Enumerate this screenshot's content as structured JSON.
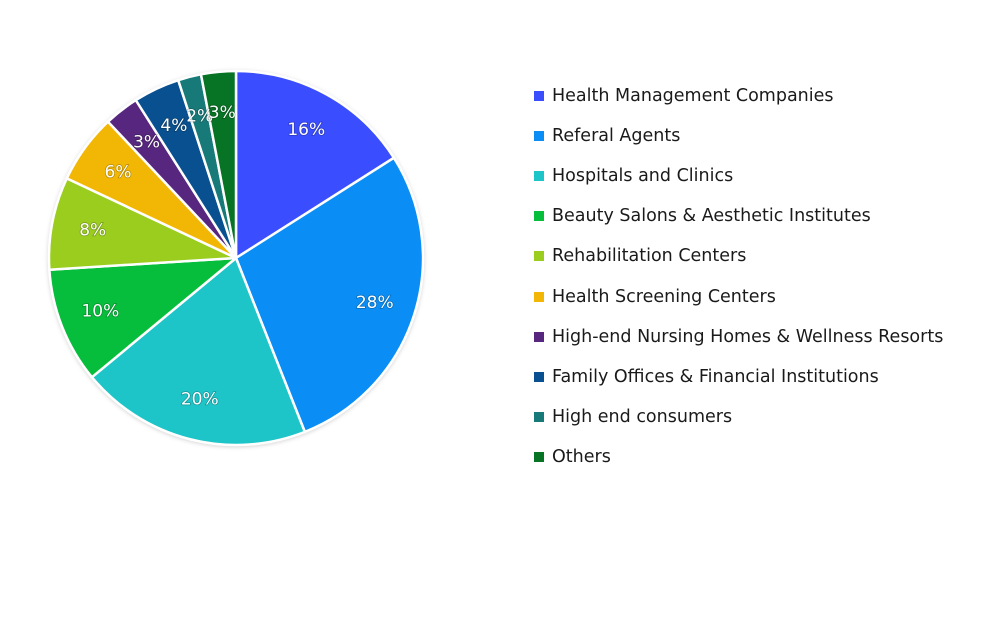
{
  "chart_data": {
    "type": "pie",
    "title": "",
    "start_angle": "12 o'clock, clockwise",
    "legend_position": "right",
    "categories": [
      "Health Management Companies",
      "Referal Agents",
      "Hospitals and Clinics",
      "Beauty Salons & Aesthetic Institutes",
      "Rehabilitation Centers",
      "Health Screening Centers",
      "High-end Nursing Homes & Wellness Resorts",
      "Family Offices & Financial Institutions",
      "High end consumers",
      "Others"
    ],
    "values": [
      16,
      28,
      20,
      10,
      8,
      6,
      3,
      4,
      2,
      3
    ],
    "labels": [
      "16%",
      "28%",
      "20%",
      "10%",
      "8%",
      "6%",
      "3%",
      "4%",
      "2%",
      "3%"
    ],
    "colors": [
      "#3a4dff",
      "#0a8ef5",
      "#1ec5c8",
      "#07bd3c",
      "#9acd1e",
      "#f2b705",
      "#57267f",
      "#08508f",
      "#177a78",
      "#077325"
    ],
    "unit": "%"
  },
  "legend": {
    "items": [
      {
        "label": "Health Management Companies",
        "color": "#3a4dff"
      },
      {
        "label": "Referal Agents",
        "color": "#0a8ef5"
      },
      {
        "label": "Hospitals and Clinics",
        "color": "#1ec5c8"
      },
      {
        "label": "Beauty Salons & Aesthetic Institutes",
        "color": "#07bd3c"
      },
      {
        "label": "Rehabilitation Centers",
        "color": "#9acd1e"
      },
      {
        "label": "Health Screening Centers",
        "color": "#f2b705"
      },
      {
        "label": "High-end Nursing Homes & Wellness Resorts",
        "color": "#57267f"
      },
      {
        "label": "Family Offices & Financial Institutions",
        "color": "#08508f"
      },
      {
        "label": "High end consumers",
        "color": "#177a78"
      },
      {
        "label": "Others",
        "color": "#077325"
      }
    ]
  }
}
